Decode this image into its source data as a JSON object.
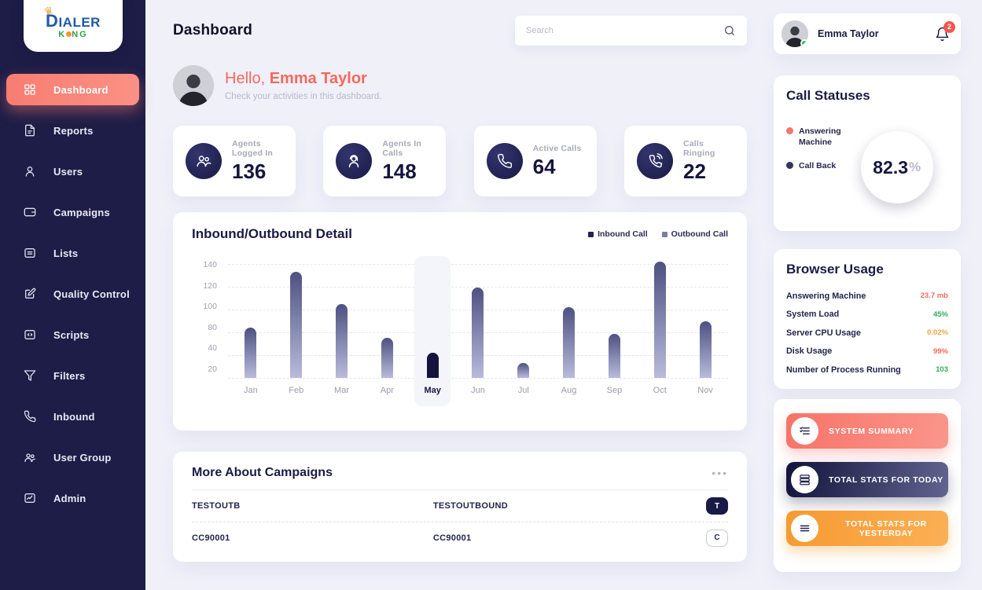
{
  "brand": {
    "line1": "DIALER",
    "king_k": "K",
    "king_ng": "NG"
  },
  "sidebar": {
    "items": [
      {
        "label": "Dashboard",
        "active": true
      },
      {
        "label": "Reports"
      },
      {
        "label": "Users"
      },
      {
        "label": "Campaigns"
      },
      {
        "label": "Lists"
      },
      {
        "label": "Quality Control"
      },
      {
        "label": "Scripts"
      },
      {
        "label": "Filters"
      },
      {
        "label": "Inbound"
      },
      {
        "label": "User Group"
      },
      {
        "label": "Admin"
      }
    ]
  },
  "header": {
    "title": "Dashboard",
    "search_placeholder": "Search",
    "user_name": "Emma Taylor",
    "notification_count": "2"
  },
  "greeting": {
    "hello": "Hello,",
    "name": "Emma Taylor",
    "subtitle": "Check your activities in this dashboard."
  },
  "stats": [
    {
      "label": "Agents Logged In",
      "value": "136"
    },
    {
      "label": "Agents In Calls",
      "value": "148"
    },
    {
      "label": "Active Calls",
      "value": "64"
    },
    {
      "label": "Calls Ringing",
      "value": "22"
    }
  ],
  "chart_data": {
    "type": "bar",
    "title": "Inbound/Outbound Detail",
    "legend": [
      {
        "label": "Inbound Call",
        "color": "#23234d"
      },
      {
        "label": "Outbound Call",
        "color": "#7a7da1"
      }
    ],
    "categories": [
      "Jan",
      "Feb",
      "Mar",
      "Apr",
      "May",
      "Jun",
      "Jul",
      "Aug",
      "Sep",
      "Oct",
      "Nov"
    ],
    "values": [
      84,
      133,
      105,
      71,
      44,
      119,
      33,
      102,
      77,
      142,
      90
    ],
    "highlight_index": 4,
    "y_ticks": [
      "140",
      "120",
      "100",
      "80",
      "40",
      "20"
    ],
    "ylim": [
      20,
      140
    ],
    "grid": "dashed horizontal"
  },
  "call_statuses": {
    "title": "Call Statuses",
    "legend": [
      {
        "label": "Answering Machine",
        "color": "#f9766b"
      },
      {
        "label": "Call Back",
        "color": "#33345f"
      }
    ],
    "value": "82.3",
    "unit": "%",
    "segments": [
      {
        "name": "answering-machine",
        "color": "#f9766b",
        "from": 0,
        "to": 113
      },
      {
        "name": "call-back",
        "color": "#40426f",
        "from": 113,
        "to": 222
      },
      {
        "name": "track",
        "color": "#eceief",
        "from": 222,
        "to": 360
      }
    ]
  },
  "browser_usage": {
    "title": "Browser Usage",
    "rows": [
      {
        "label": "Answering Machine",
        "value": "23.7 mb",
        "color": "#f4695e"
      },
      {
        "label": "System Load",
        "value": "45%",
        "color": "#2fae5f"
      },
      {
        "label": "Server CPU Usage",
        "value": "0.02%",
        "color": "#f2a33c"
      },
      {
        "label": "Disk Usage",
        "value": "99%",
        "color": "#f4695e"
      },
      {
        "label": "Number of Process Running",
        "value": "103",
        "color": "#2fae5f"
      }
    ]
  },
  "quick_actions": [
    {
      "label": "SYSTEM SUMMARY"
    },
    {
      "label": "TOTAL STATS FOR TODAY"
    },
    {
      "label": "TOTAL STATS FOR YESTERDAY"
    }
  ],
  "campaigns": {
    "title": "More About Campaigns",
    "rows": [
      {
        "col1": "TESTOUTB",
        "col2": "TESTOUTBOUND",
        "badge": "T"
      },
      {
        "col1": "CC90001",
        "col2": "CC90001",
        "badge": "C"
      }
    ]
  }
}
